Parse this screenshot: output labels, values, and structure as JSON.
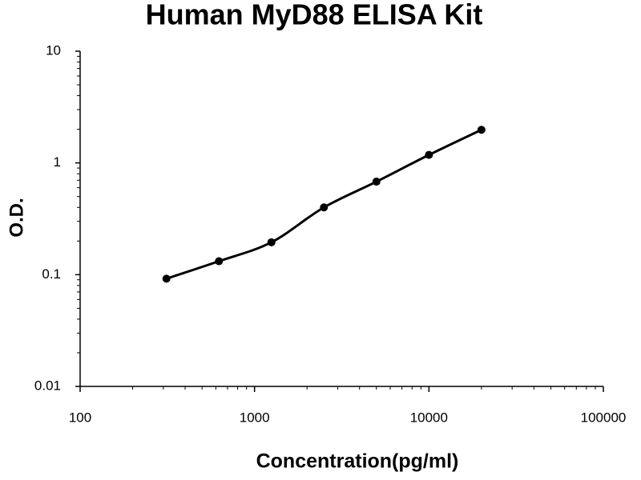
{
  "chart_data": {
    "type": "scatter",
    "title": "Human MyD88 ELISA Kit",
    "x_label": "Concentration(pg/ml)",
    "y_label": "O.D.",
    "x": [
      312.5,
      625,
      1250,
      2500,
      5000,
      10000,
      20000
    ],
    "values": [
      0.092,
      0.132,
      0.195,
      0.4,
      0.68,
      1.18,
      1.98
    ],
    "color": "#000000",
    "fit_line": true,
    "xscale": "log",
    "yscale": "log",
    "minor_ticks": true,
    "grid": false,
    "xlim": [
      100,
      100000
    ],
    "xticks": [
      100,
      1000,
      10000,
      100000
    ],
    "ylim": [
      0.01,
      10
    ],
    "yticks": [
      0.01,
      0.1,
      1,
      10
    ]
  }
}
